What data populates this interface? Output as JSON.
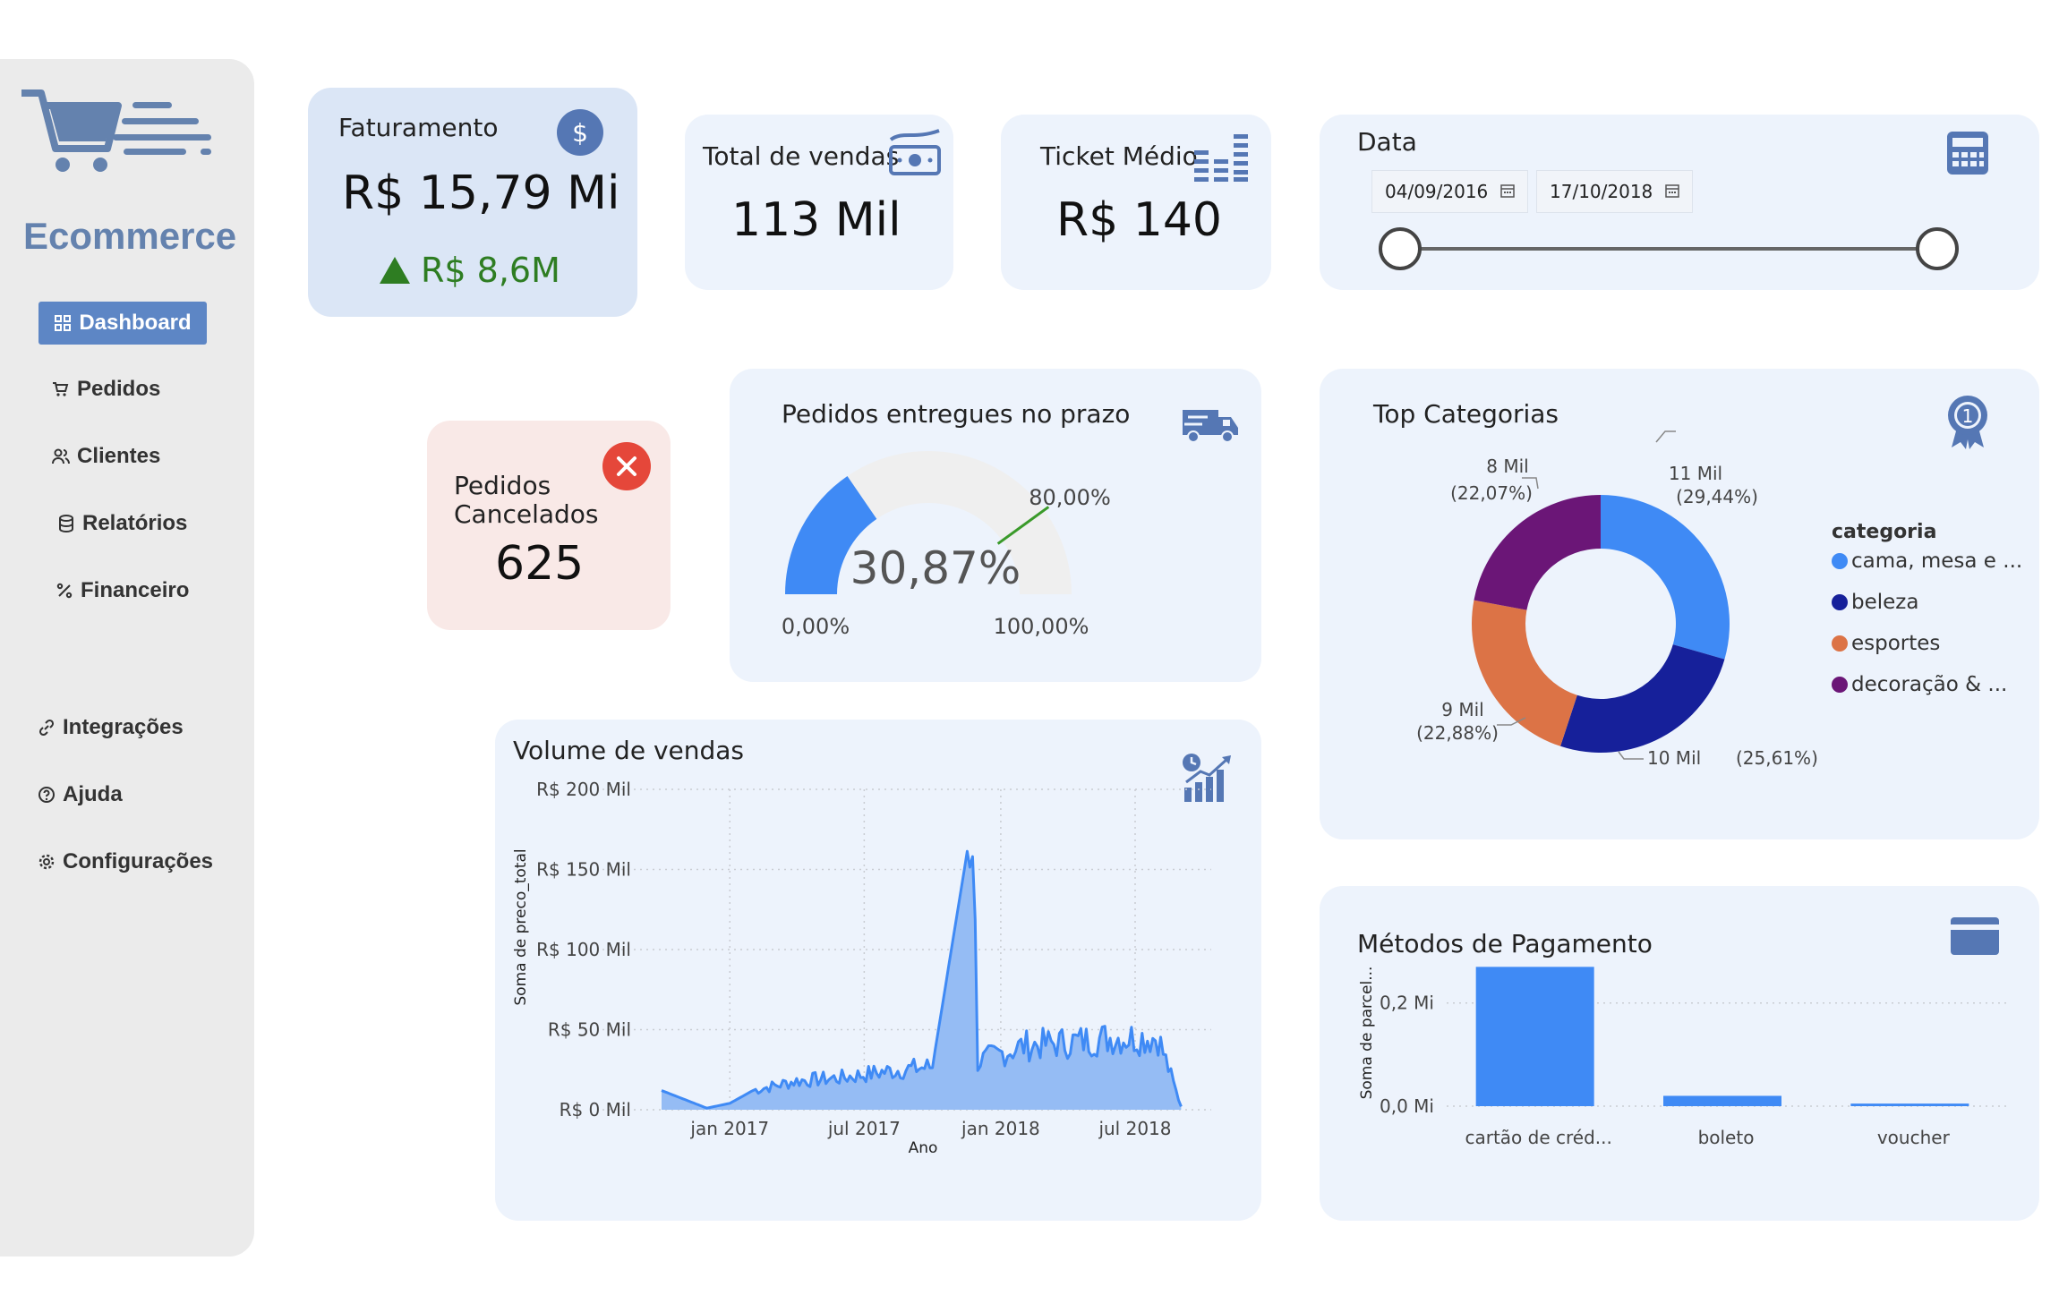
{
  "sidebar": {
    "brand": "Ecommerce",
    "items": [
      {
        "label": "Dashboard",
        "icon": "grid-icon",
        "active": true
      },
      {
        "label": "Pedidos",
        "icon": "cart-icon"
      },
      {
        "label": "Clientes",
        "icon": "users-icon"
      },
      {
        "label": "Relatórios",
        "icon": "database-icon"
      },
      {
        "label": "Financeiro",
        "icon": "percent-icon"
      },
      {
        "label": "Integrações",
        "icon": "link-icon"
      },
      {
        "label": "Ajuda",
        "icon": "help-icon"
      },
      {
        "label": "Configurações",
        "icon": "gear-icon"
      }
    ]
  },
  "kpis": {
    "faturamento": {
      "label": "Faturamento",
      "value": "R$ 15,79 Mi",
      "delta": "R$ 8,6M",
      "delta_color": "#2e7d22"
    },
    "total_vendas": {
      "label": "Total de vendas",
      "value": "113 Mil"
    },
    "ticket_medio": {
      "label": "Ticket Médio",
      "value": "R$ 140"
    },
    "cancelados": {
      "label_line1": "Pedidos",
      "label_line2": "Cancelados",
      "value": "625"
    }
  },
  "date_filter": {
    "label": "Data",
    "start": "04/09/2016",
    "end": "17/10/2018"
  },
  "gauge": {
    "title": "Pedidos entregues no prazo",
    "value_label": "30,87%",
    "min_label": "0,00%",
    "max_label": "100,00%",
    "target_label": "80,00%",
    "value": 30.87,
    "target": 80,
    "min": 0,
    "max": 100
  },
  "volume": {
    "title": "Volume de vendas",
    "ylabel": "Soma de preco_total",
    "xlabel": "Ano",
    "yticks": [
      "R$ 200 Mil",
      "R$ 150 Mil",
      "R$ 100 Mil",
      "R$ 50 Mil",
      "R$ 0 Mil"
    ],
    "xticks": [
      "jan 2017",
      "jul 2017",
      "jan 2018",
      "jul 2018"
    ]
  },
  "top_categorias": {
    "title": "Top Categorias",
    "legend_title": "categoria",
    "slices": [
      {
        "name": "cama, mesa e ...",
        "value_label": "11 Mil",
        "pct_label": "(29,44%)",
        "pct": 29.44,
        "color": "#3f8af5"
      },
      {
        "name": "beleza",
        "value_label": "10 Mil",
        "pct_label": "(25,61%)",
        "pct": 25.61,
        "color": "#16209a"
      },
      {
        "name": "esportes",
        "value_label": "9 Mil",
        "pct_label": "(22,88%)",
        "pct": 22.88,
        "color": "#dc7346"
      },
      {
        "name": "decoração & ...",
        "value_label": "8 Mil",
        "pct_label": "(22,07%)",
        "pct": 22.07,
        "color": "#6b1677"
      }
    ]
  },
  "pagamento": {
    "title": "Métodos de Pagamento",
    "ylabel": "Soma de parcel...",
    "yticks": [
      "0,2 Mi",
      "0,0 Mi"
    ],
    "categories": [
      "cartão de créd...",
      "boleto",
      "voucher"
    ],
    "values": [
      0.27,
      0.02,
      0.005
    ]
  },
  "chart_data": [
    {
      "type": "area",
      "title": "Volume de vendas",
      "xlabel": "Ano",
      "ylabel": "Soma de preco_total",
      "ylim": [
        0,
        200000
      ],
      "x": [
        "2016-10",
        "2016-12",
        "2017-01",
        "2017-02",
        "2017-04",
        "2017-06",
        "2017-08",
        "2017-10",
        "2017-11-24",
        "2017-12",
        "2018-02",
        "2018-04",
        "2018-06",
        "2018-08",
        "2018-09"
      ],
      "series": [
        {
          "values": [
            12000,
            1000,
            4000,
            12000,
            18000,
            20000,
            24000,
            27000,
            182000,
            30000,
            40000,
            42000,
            45000,
            45000,
            2000
          ]
        }
      ]
    },
    {
      "type": "pie",
      "title": "Top Categorias",
      "categories": [
        "cama, mesa e ...",
        "beleza",
        "esportes",
        "decoração & ..."
      ],
      "values": [
        29.44,
        25.61,
        22.88,
        22.07
      ]
    },
    {
      "type": "bar",
      "title": "Métodos de Pagamento",
      "ylabel": "Soma de parcel...",
      "categories": [
        "cartão de créd...",
        "boleto",
        "voucher"
      ],
      "values": [
        0.27,
        0.02,
        0.005
      ]
    }
  ]
}
